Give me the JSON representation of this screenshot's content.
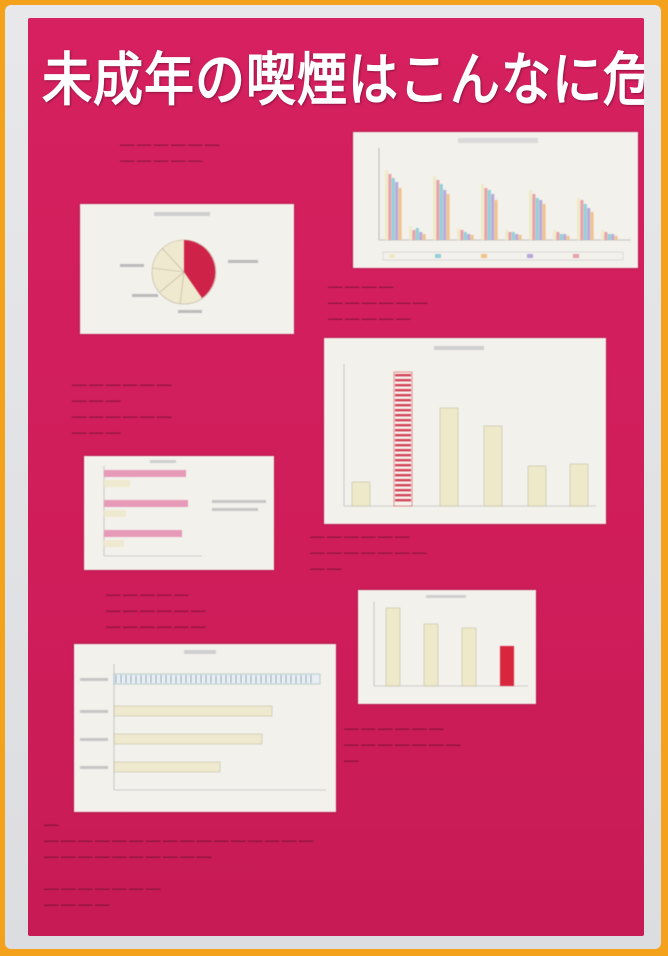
{
  "poster": {
    "title": "未成年の喫煙はこんなに危険！"
  },
  "colors": {
    "frame": "#f4a21c",
    "poster": "#d6205f",
    "panel": "#f3f1ec",
    "bar_cream": "#eeeac9",
    "bar_red": "#d9263f",
    "bar_pink": "#e79ab8"
  }
}
